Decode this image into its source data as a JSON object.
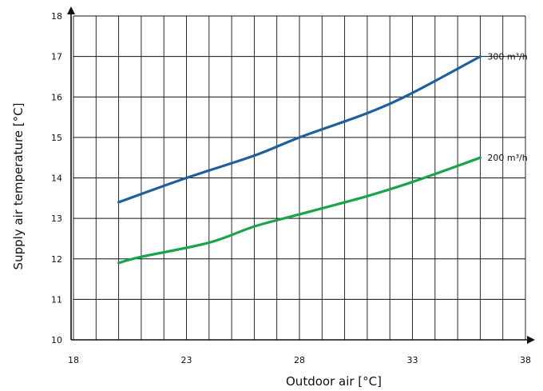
{
  "chart_data": {
    "type": "line",
    "title": "",
    "xlabel": "Outdoor air [°C]",
    "ylabel": "Supply air temperature [°C]",
    "xlim": [
      18,
      38
    ],
    "ylim": [
      10,
      18
    ],
    "x_tick_labels": [
      "18",
      "23",
      "28",
      "33",
      "38"
    ],
    "y_tick_labels": [
      "10",
      "11",
      "12",
      "13",
      "14",
      "15",
      "16",
      "17",
      "18"
    ],
    "grid": true,
    "legend": "inline at line ends",
    "series": [
      {
        "name": "300 m³/h",
        "color": "#1f5f9c",
        "points": [
          [
            20,
            13.4
          ],
          [
            23,
            14.0
          ],
          [
            26,
            14.55
          ],
          [
            28,
            15.0
          ],
          [
            31,
            15.6
          ],
          [
            33,
            16.1
          ],
          [
            36,
            17.0
          ]
        ]
      },
      {
        "name": "200 m³/h",
        "color": "#1aa34a",
        "points": [
          [
            20,
            11.9
          ],
          [
            21,
            12.05
          ],
          [
            24,
            12.4
          ],
          [
            26,
            12.8
          ],
          [
            28,
            13.1
          ],
          [
            31,
            13.55
          ],
          [
            33,
            13.9
          ],
          [
            36,
            14.5
          ]
        ]
      }
    ]
  }
}
